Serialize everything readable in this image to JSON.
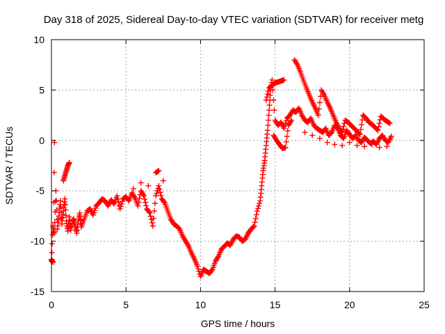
{
  "chart_data": {
    "type": "scatter",
    "title": "Day 318 of 2025, Sidereal Day-to-day VTEC variation (SDTVAR) for receiver metg",
    "xlabel": "GPS time / hours",
    "ylabel": "SDTVAR / TECUs",
    "xlim": [
      0,
      25
    ],
    "ylim": [
      -15,
      10
    ],
    "xticks": [
      0,
      5,
      10,
      15,
      20,
      25
    ],
    "yticks": [
      -15,
      -10,
      -5,
      0,
      5,
      10
    ],
    "xtick_labels": [
      "0",
      "5",
      "10",
      "15",
      "20",
      "25"
    ],
    "ytick_labels": [
      "-15",
      "-10",
      "-5",
      "0",
      "5",
      "10"
    ],
    "grid": true,
    "marker": "plus",
    "color": "#ff0000",
    "series": [
      {
        "name": "main",
        "x": [
          0.0,
          0.1,
          0.2,
          0.3,
          0.4,
          0.5,
          0.6,
          0.7,
          0.8,
          0.9,
          1.0,
          1.1,
          1.2,
          1.3,
          1.4,
          1.5,
          1.6,
          1.7,
          1.8,
          1.9,
          2.0,
          2.2,
          2.4,
          2.6,
          2.8,
          3.0,
          3.2,
          3.4,
          3.6,
          3.8,
          4.0,
          4.2,
          4.4,
          4.6,
          4.8,
          5.0,
          5.2,
          5.4,
          5.6,
          5.8,
          6.0,
          6.2,
          6.4,
          6.6,
          6.8,
          7.0,
          7.2,
          7.4,
          7.6,
          7.8,
          8.0,
          8.2,
          8.4,
          8.6,
          8.8,
          9.0,
          9.2,
          9.4,
          9.6,
          9.8,
          10.0,
          10.2,
          10.4,
          10.6,
          10.8,
          11.0,
          11.2,
          11.4,
          11.6,
          11.8,
          12.0,
          12.2,
          12.4,
          12.6,
          12.8,
          13.0,
          13.2,
          13.4,
          13.6,
          13.8,
          14.0,
          14.1,
          14.2,
          14.3,
          14.4,
          14.5,
          14.6,
          14.7,
          14.8,
          15.0,
          15.2,
          15.4,
          15.6,
          15.8,
          16.0,
          16.2,
          16.4,
          16.6,
          16.8,
          17.0,
          17.2,
          17.4,
          17.6,
          17.8,
          18.0,
          18.2,
          18.4,
          18.6,
          18.8,
          19.0,
          19.2,
          19.4,
          19.6,
          19.8,
          20.0,
          20.2,
          20.4,
          20.6,
          20.8,
          21.0,
          21.2,
          21.4,
          21.6,
          21.8,
          22.0,
          22.2,
          22.4,
          22.6,
          22.8
        ],
        "y": [
          -12.0,
          -8.5,
          -9.2,
          -5.0,
          -8.8,
          -7.5,
          -6.0,
          -8.3,
          -7.0,
          -5.8,
          -8.0,
          -9.0,
          -7.6,
          -8.9,
          -8.0,
          -7.8,
          -8.5,
          -9.2,
          -8.0,
          -7.2,
          -8.6,
          -7.8,
          -7.0,
          -6.8,
          -7.4,
          -6.5,
          -6.2,
          -5.8,
          -6.0,
          -6.5,
          -5.9,
          -6.3,
          -5.5,
          -6.8,
          -5.8,
          -5.6,
          -6.0,
          -5.2,
          -5.7,
          -6.5,
          -5.0,
          -5.5,
          -6.8,
          -7.2,
          -8.5,
          -5.5,
          -4.5,
          -5.8,
          -6.2,
          -7.0,
          -7.8,
          -8.3,
          -8.5,
          -8.8,
          -9.5,
          -10.0,
          -10.5,
          -11.2,
          -11.8,
          -12.5,
          -13.5,
          -12.8,
          -13.0,
          -13.2,
          -12.8,
          -12.0,
          -11.5,
          -10.8,
          -10.5,
          -10.2,
          -10.4,
          -9.8,
          -9.5,
          -9.6,
          -10.0,
          -9.8,
          -9.2,
          -8.8,
          -8.5,
          -7.0,
          -6.0,
          -4.5,
          -3.0,
          -2.0,
          -0.5,
          1.0,
          3.0,
          5.0,
          6.0,
          2.0,
          1.5,
          1.8,
          1.2,
          2.2,
          2.5,
          3.0,
          2.8,
          3.2,
          2.5,
          2.0,
          1.8,
          2.2,
          1.5,
          1.2,
          1.0,
          0.8,
          1.2,
          0.5,
          0.8,
          1.5,
          1.2,
          0.5,
          0.2,
          1.0,
          0.6,
          0.2,
          0.5,
          0.0,
          -0.2,
          0.3,
          0.0,
          -0.3,
          -0.1,
          -0.4,
          0.2,
          0.5,
          0.0,
          -0.2,
          0.4
        ]
      },
      {
        "name": "upper-band",
        "x": [
          0.8,
          0.9,
          1.0,
          1.1,
          1.2,
          5.5,
          6.0,
          6.5,
          7.0,
          7.2,
          7.5,
          14.4,
          14.6,
          14.8,
          15.0,
          15.2,
          15.4,
          15.6,
          16.3,
          16.5,
          16.7,
          16.9,
          17.1,
          17.3,
          17.5,
          17.7,
          17.9,
          18.1,
          18.3,
          18.5,
          18.7,
          18.9,
          19.1,
          19.3,
          19.5,
          19.7,
          19.9,
          20.1,
          20.3,
          20.5,
          20.7,
          20.9,
          21.1,
          21.3,
          21.5,
          21.7,
          21.9,
          22.1,
          22.3,
          22.5,
          22.7
        ],
        "y": [
          -4.0,
          -3.5,
          -3.0,
          -2.5,
          -2.2,
          -4.8,
          -4.2,
          -4.5,
          -3.2,
          -3.0,
          -4.0,
          4.0,
          5.2,
          5.5,
          5.7,
          5.8,
          5.9,
          6.0,
          8.0,
          7.5,
          6.8,
          6.0,
          5.2,
          4.5,
          3.8,
          3.2,
          2.5,
          5.0,
          4.5,
          3.8,
          3.2,
          2.5,
          1.8,
          1.2,
          0.8,
          2.0,
          1.8,
          1.5,
          1.2,
          0.9,
          0.6,
          2.5,
          2.2,
          1.8,
          1.6,
          1.3,
          1.0,
          2.4,
          2.1,
          1.9,
          1.7
        ]
      },
      {
        "name": "lower-band",
        "x": [
          0.0,
          0.1,
          0.2,
          14.9,
          15.1,
          15.3,
          15.5,
          15.7,
          15.9,
          16.1,
          17.0,
          17.5,
          18.0,
          18.5,
          19.0,
          19.5,
          20.0,
          20.5,
          21.0,
          21.5,
          22.0,
          22.5
        ],
        "y": [
          -11.8,
          -12.1,
          -0.2,
          0.5,
          0.0,
          -0.4,
          -0.8,
          -0.7,
          1.5,
          2.0,
          0.8,
          0.5,
          0.2,
          -0.2,
          -0.4,
          -0.5,
          -0.2,
          -0.5,
          -0.6,
          -0.4,
          -0.7,
          -0.6
        ]
      }
    ]
  }
}
